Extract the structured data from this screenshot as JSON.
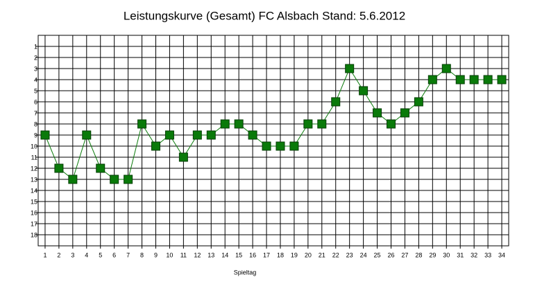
{
  "chart_data": {
    "type": "line",
    "title": "Leistungskurve (Gesamt) FC Alsbach Stand: 5.6.2012",
    "x_label": "Spieltag",
    "x": [
      1,
      2,
      3,
      4,
      5,
      6,
      7,
      8,
      9,
      10,
      11,
      12,
      13,
      14,
      15,
      16,
      17,
      18,
      19,
      20,
      21,
      22,
      23,
      24,
      25,
      26,
      27,
      28,
      29,
      30,
      31,
      32,
      33,
      34
    ],
    "series": [
      {
        "name": "FC Alsbach",
        "color": "#0a7a0a",
        "values": [
          9,
          12,
          13,
          9,
          12,
          13,
          13,
          8,
          10,
          9,
          11,
          9,
          9,
          8,
          8,
          9,
          10,
          10,
          10,
          8,
          8,
          6,
          3,
          5,
          7,
          8,
          7,
          6,
          4,
          3,
          4,
          4,
          4,
          4
        ]
      }
    ],
    "xlim": [
      0.5,
      34.5
    ],
    "xticks": [
      1,
      2,
      3,
      4,
      5,
      6,
      7,
      8,
      9,
      10,
      11,
      12,
      13,
      14,
      15,
      16,
      17,
      18,
      19,
      20,
      21,
      22,
      23,
      24,
      25,
      26,
      27,
      28,
      29,
      30,
      31,
      32,
      33,
      34
    ],
    "ylim": [
      19,
      0
    ],
    "yticks": [
      1,
      2,
      3,
      4,
      5,
      6,
      7,
      8,
      9,
      10,
      11,
      12,
      13,
      14,
      15,
      16,
      17,
      18
    ],
    "grid": true
  }
}
